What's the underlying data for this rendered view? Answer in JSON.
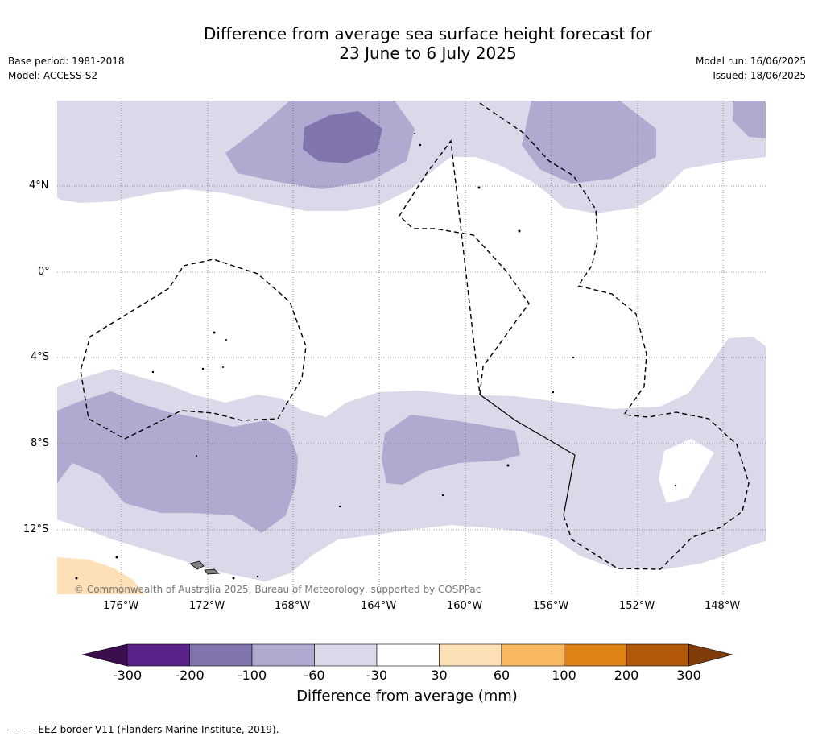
{
  "header": {
    "title_line1": "Difference from average sea surface height forecast for",
    "title_line2": "23 June to 6 July 2025",
    "base_period": "Base period: 1981-2018",
    "model": "Model: ACCESS-S2",
    "model_run": "Model run: 16/06/2025",
    "issued": "Issued: 18/06/2025"
  },
  "map": {
    "lat_labels": [
      "4°N",
      "0°",
      "4°S",
      "8°S",
      "12°S"
    ],
    "lon_labels": [
      "176°W",
      "172°W",
      "168°W",
      "164°W",
      "160°W",
      "156°W",
      "152°W",
      "148°W"
    ],
    "copyright": "© Commonwealth of Australia 2025, Bureau of Meteorology, supported by COSPPac",
    "colors": {
      "ocean_white": "#ffffff",
      "minus30_60": "#d9d9ea",
      "minus60_100": "#b0aad1",
      "minus100_200": "#8275ae",
      "plus30_60": "#fde0b6",
      "land": "#808080"
    }
  },
  "colorbar": {
    "title": "Difference from average (mm)",
    "tick_labels": [
      "-300",
      "-200",
      "-100",
      "-60",
      "-30",
      "30",
      "60",
      "100",
      "200",
      "300"
    ],
    "colors": [
      "#3b0f4e",
      "#59238a",
      "#8275ae",
      "#b0aad1",
      "#d9d9ea",
      "#ffffff",
      "#fde0b6",
      "#f9b75e",
      "#e08214",
      "#b35808",
      "#7f3b08"
    ]
  },
  "footnote": "--  --  -- EEZ border V11 (Flanders Marine Institute, 2019)."
}
